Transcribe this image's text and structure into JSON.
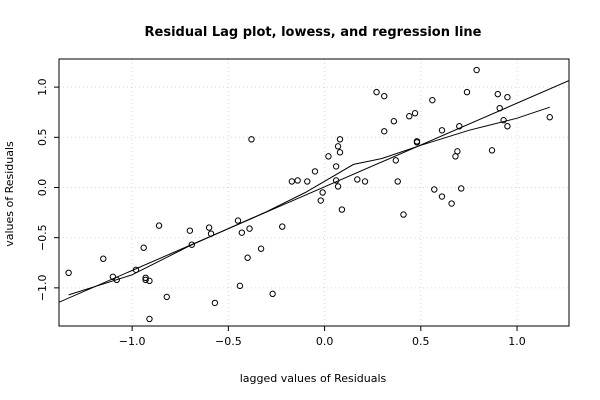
{
  "chart_data": {
    "type": "scatter",
    "title": "Residual Lag plot, lowess, and regression line",
    "xlabel": "lagged values of Residuals",
    "ylabel": "values of Residuals",
    "xlim": [
      -1.38,
      1.27
    ],
    "ylim": [
      -1.38,
      1.28
    ],
    "x_ticks": [
      -1.0,
      -0.5,
      0.0,
      0.5,
      1.0
    ],
    "x_tick_labels": [
      "−1.0",
      "−0.5",
      "0.0",
      "0.5",
      "1.0"
    ],
    "y_ticks": [
      -1.0,
      -0.5,
      0.0,
      0.5,
      1.0
    ],
    "y_tick_labels": [
      "−1.0",
      "−0.5",
      "0.0",
      "0.5",
      "1.0"
    ],
    "grid": true,
    "points": [
      [
        -1.33,
        -0.85
      ],
      [
        -1.15,
        -0.71
      ],
      [
        -1.1,
        -0.89
      ],
      [
        -1.08,
        -0.92
      ],
      [
        -0.98,
        -0.82
      ],
      [
        -0.94,
        -0.6
      ],
      [
        -0.93,
        -0.9
      ],
      [
        -0.93,
        -0.92
      ],
      [
        -0.91,
        -0.93
      ],
      [
        -0.91,
        -1.31
      ],
      [
        -0.86,
        -0.38
      ],
      [
        -0.82,
        -1.09
      ],
      [
        -0.7,
        -0.43
      ],
      [
        -0.69,
        -0.57
      ],
      [
        -0.6,
        -0.4
      ],
      [
        -0.59,
        -0.46
      ],
      [
        -0.57,
        -1.15
      ],
      [
        -0.45,
        -0.33
      ],
      [
        -0.44,
        -0.98
      ],
      [
        -0.43,
        -0.45
      ],
      [
        -0.4,
        -0.7
      ],
      [
        -0.39,
        -0.41
      ],
      [
        -0.38,
        0.48
      ],
      [
        -0.33,
        -0.61
      ],
      [
        -0.27,
        -1.06
      ],
      [
        -0.22,
        -0.39
      ],
      [
        -0.17,
        0.06
      ],
      [
        -0.14,
        0.07
      ],
      [
        -0.09,
        0.06
      ],
      [
        -0.05,
        0.16
      ],
      [
        -0.02,
        -0.13
      ],
      [
        -0.01,
        -0.05
      ],
      [
        0.02,
        0.31
      ],
      [
        0.06,
        0.21
      ],
      [
        0.06,
        0.07
      ],
      [
        0.07,
        0.41
      ],
      [
        0.07,
        0.01
      ],
      [
        0.08,
        0.48
      ],
      [
        0.08,
        0.35
      ],
      [
        0.09,
        -0.22
      ],
      [
        0.17,
        0.08
      ],
      [
        0.21,
        0.06
      ],
      [
        0.27,
        0.95
      ],
      [
        0.31,
        0.56
      ],
      [
        0.31,
        0.91
      ],
      [
        0.36,
        0.66
      ],
      [
        0.37,
        0.27
      ],
      [
        0.38,
        0.06
      ],
      [
        0.41,
        -0.27
      ],
      [
        0.44,
        0.71
      ],
      [
        0.47,
        0.74
      ],
      [
        0.48,
        0.45
      ],
      [
        0.48,
        0.46
      ],
      [
        0.56,
        0.87
      ],
      [
        0.57,
        -0.02
      ],
      [
        0.61,
        -0.09
      ],
      [
        0.61,
        0.57
      ],
      [
        0.66,
        -0.16
      ],
      [
        0.68,
        0.31
      ],
      [
        0.69,
        0.36
      ],
      [
        0.7,
        0.61
      ],
      [
        0.71,
        -0.01
      ],
      [
        0.74,
        0.95
      ],
      [
        0.79,
        1.17
      ],
      [
        0.87,
        0.37
      ],
      [
        0.9,
        0.93
      ],
      [
        0.91,
        0.79
      ],
      [
        0.93,
        0.67
      ],
      [
        0.95,
        0.9
      ],
      [
        0.95,
        0.61
      ],
      [
        1.17,
        0.7
      ]
    ],
    "regression_line": [
      [
        -1.4,
        -1.16
      ],
      [
        1.3,
        1.09
      ]
    ],
    "lowess_line": [
      [
        -1.33,
        -1.07
      ],
      [
        -1.0,
        -0.87
      ],
      [
        -0.7,
        -0.58
      ],
      [
        -0.5,
        -0.41
      ],
      [
        -0.3,
        -0.24
      ],
      [
        -0.1,
        -0.05
      ],
      [
        0.15,
        0.23
      ],
      [
        0.3,
        0.29
      ],
      [
        0.5,
        0.42
      ],
      [
        0.75,
        0.57
      ],
      [
        1.0,
        0.69
      ],
      [
        1.17,
        0.8
      ]
    ]
  }
}
